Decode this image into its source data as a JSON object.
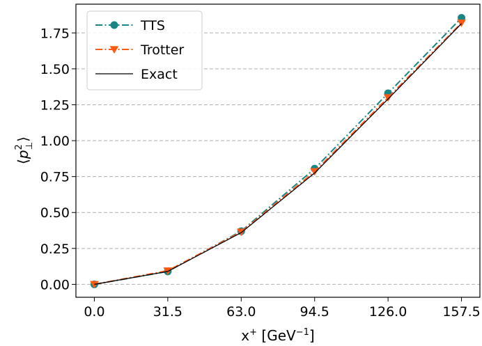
{
  "chart_data": {
    "type": "line",
    "x": [
      0.0,
      31.5,
      63.0,
      94.5,
      126.0,
      157.5
    ],
    "x_ticks": [
      "0.0",
      "31.5",
      "63.0",
      "94.5",
      "126.0",
      "157.5"
    ],
    "y_ticks": [
      "0.00",
      "0.25",
      "0.50",
      "0.75",
      "1.00",
      "1.25",
      "1.50",
      "1.75"
    ],
    "xlim": [
      -7.9,
      165.4
    ],
    "ylim": [
      -0.09,
      1.95
    ],
    "grid": "y-dashed",
    "legend_position": "top-left",
    "xlabel_base": "x",
    "xlabel_sup": "+",
    "xlabel_unit_open": " [GeV",
    "xlabel_unit_sup": "−1",
    "xlabel_unit_close": "]",
    "ylabel_open": "⟨",
    "ylabel_var": "p",
    "ylabel_sup": "2",
    "ylabel_sub": "⊥",
    "ylabel_close": "⟩",
    "series": [
      {
        "name": "TTS",
        "values": [
          0.0,
          0.09,
          0.37,
          0.805,
          1.33,
          1.855
        ],
        "color": "#1a8585",
        "marker": "circle",
        "linestyle": "dashdot"
      },
      {
        "name": "Trotter",
        "values": [
          0.0,
          0.095,
          0.365,
          0.785,
          1.3,
          1.82
        ],
        "color": "#ff5a14",
        "marker": "triangle-down",
        "linestyle": "dashdot"
      },
      {
        "name": "Exact",
        "values": [
          0.0,
          0.09,
          0.36,
          0.775,
          1.29,
          1.815
        ],
        "color": "#000000",
        "marker": "none",
        "linestyle": "solid"
      }
    ]
  }
}
